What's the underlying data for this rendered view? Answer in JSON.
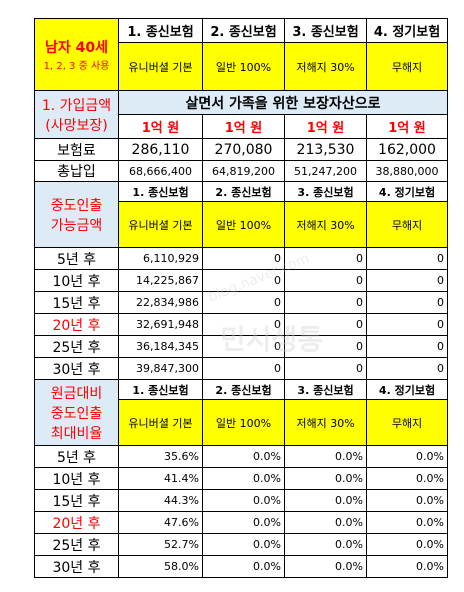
{
  "header": {
    "title": "남자 40세",
    "subtitle": "1, 2, 3 중 사용"
  },
  "columns": [
    "1. 종신보험",
    "2. 종신보험",
    "3. 종신보험",
    "4. 정기보험"
  ],
  "types": [
    "유니버셜 기본",
    "일반 100%",
    "저해지 30%",
    "무해지"
  ],
  "coverage": {
    "label": [
      "1. 가입금액",
      "(사망보장)"
    ],
    "banner": "살면서 가족을 위한 보장자산으로",
    "amounts": [
      "1억 원",
      "1억 원",
      "1억 원",
      "1억 원"
    ]
  },
  "premium": {
    "label": "보험료",
    "values": [
      "286,110",
      "270,080",
      "213,530",
      "162,000"
    ]
  },
  "total_paid": {
    "label": "총납입",
    "values": [
      "68,666,400",
      "64,819,200",
      "51,247,200",
      "38,880,000"
    ]
  },
  "withdrawal": {
    "label": [
      "중도인출",
      "가능금액"
    ],
    "columns": [
      "1. 종신보험",
      "2. 종신보험",
      "3. 종신보험",
      "4. 정기보험"
    ],
    "types": [
      "유니버셜 기본",
      "일반 100%",
      "저해지 30%",
      "무해지"
    ],
    "rows": [
      {
        "label": "5년 후",
        "values": [
          "6,110,929",
          "0",
          "0",
          "0"
        ]
      },
      {
        "label": "10년 후",
        "values": [
          "14,225,867",
          "0",
          "0",
          "0"
        ]
      },
      {
        "label": "15년 후",
        "values": [
          "22,834,986",
          "0",
          "0",
          "0"
        ]
      },
      {
        "label": "20년 후",
        "values": [
          "32,691,948",
          "0",
          "0",
          "0"
        ]
      },
      {
        "label": "25년 후",
        "values": [
          "36,184,345",
          "0",
          "0",
          "0"
        ]
      },
      {
        "label": "30년 후",
        "values": [
          "39,847,300",
          "0",
          "0",
          "0"
        ]
      }
    ]
  },
  "ratio": {
    "label": [
      "원금대비",
      "중도인출",
      "최대비율"
    ],
    "columns": [
      "1. 종신보험",
      "2. 종신보험",
      "3. 종신보험",
      "4. 정기보험"
    ],
    "types": [
      "유니버셜 기본",
      "일반 100%",
      "저해지 30%",
      "무해지"
    ],
    "rows": [
      {
        "label": "5년 후",
        "values": [
          "35.6%",
          "0.0%",
          "0.0%",
          "0.0%"
        ]
      },
      {
        "label": "10년 후",
        "values": [
          "41.4%",
          "0.0%",
          "0.0%",
          "0.0%"
        ]
      },
      {
        "label": "15년 후",
        "values": [
          "44.3%",
          "0.0%",
          "0.0%",
          "0.0%"
        ]
      },
      {
        "label": "20년 후",
        "values": [
          "47.6%",
          "0.0%",
          "0.0%",
          "0.0%"
        ]
      },
      {
        "label": "25년 후",
        "values": [
          "52.7%",
          "0.0%",
          "0.0%",
          "0.0%"
        ]
      },
      {
        "label": "30년 후",
        "values": [
          "58.0%",
          "0.0%",
          "0.0%",
          "0.0%"
        ]
      }
    ]
  },
  "watermark": [
    "blog.naver.com",
    "민시생통"
  ]
}
